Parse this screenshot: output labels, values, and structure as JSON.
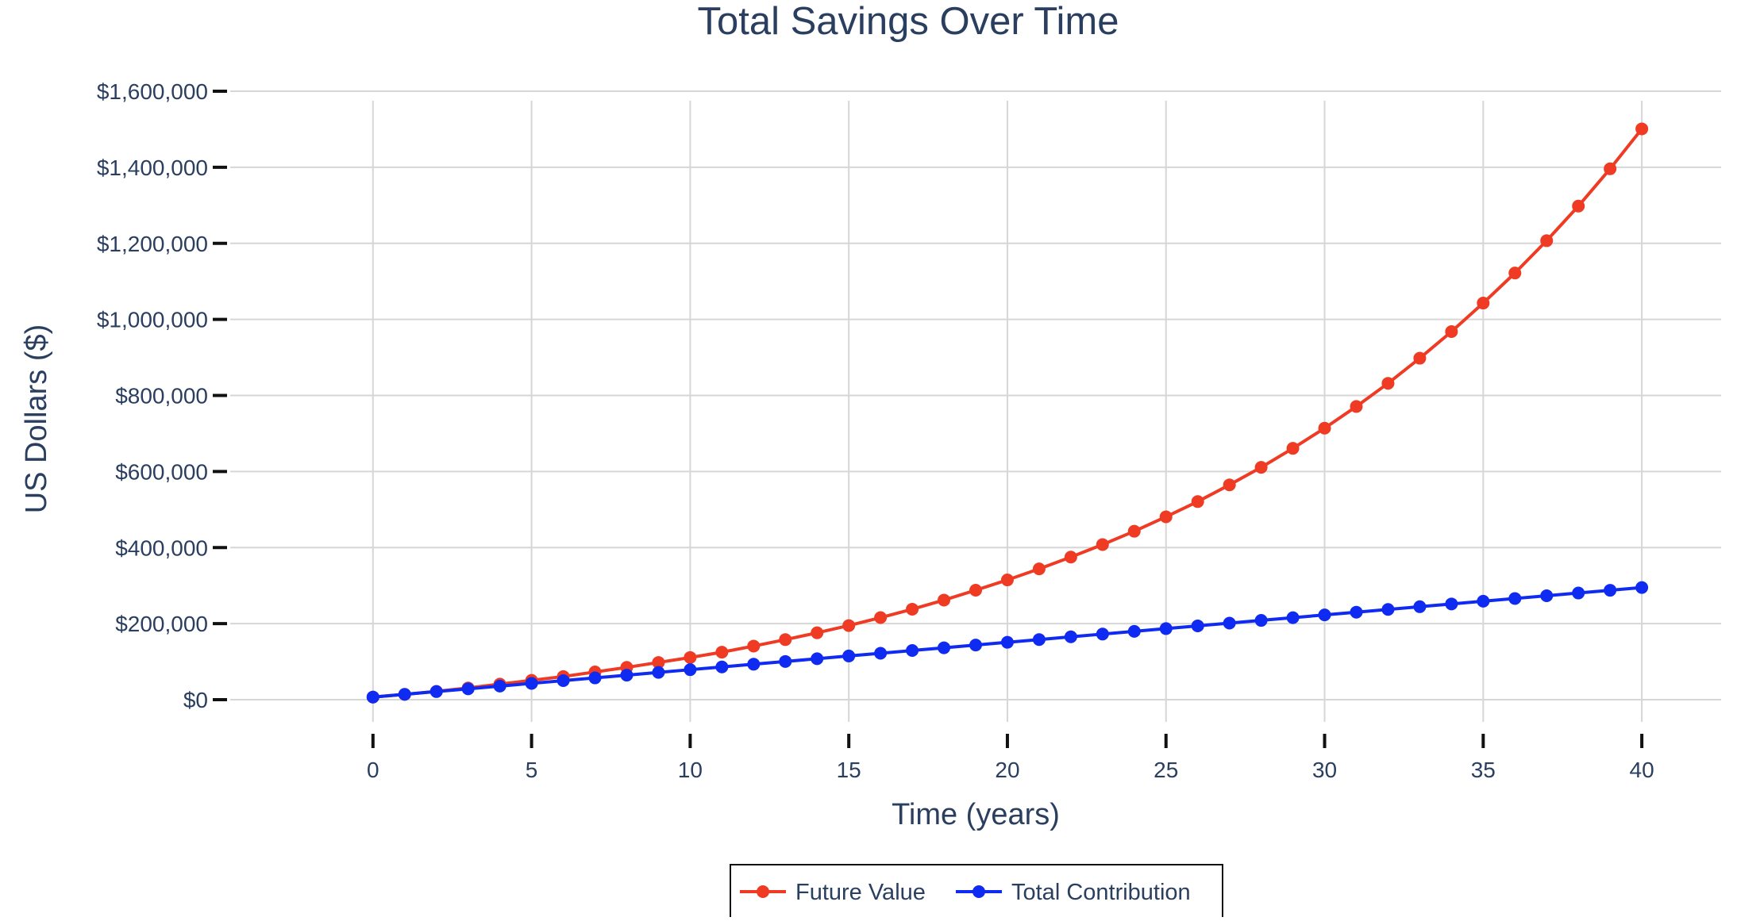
{
  "chart_data": {
    "type": "line",
    "title": "Total Savings Over Time",
    "xlabel": "Time (years)",
    "ylabel": "US Dollars ($)",
    "xlim": [
      -4.5,
      42.5
    ],
    "ylim": [
      -100000,
      1600000
    ],
    "x_ticks": [
      0,
      5,
      10,
      15,
      20,
      25,
      30,
      35,
      40
    ],
    "x_tick_labels": [
      "0",
      "5",
      "10",
      "15",
      "20",
      "25",
      "30",
      "35",
      "40"
    ],
    "y_ticks": [
      0,
      200000,
      400000,
      600000,
      800000,
      1000000,
      1200000,
      1400000,
      1600000
    ],
    "y_tick_labels": [
      "$0",
      "$200,000",
      "$400,000",
      "$600,000",
      "$800,000",
      "$1,000,000",
      "$1,200,000",
      "$1,400,000",
      "$1,600,000"
    ],
    "grid": true,
    "legend_position": "bottom-center",
    "x": [
      0,
      1,
      2,
      3,
      4,
      5,
      6,
      7,
      8,
      9,
      10,
      11,
      12,
      13,
      14,
      15,
      16,
      17,
      18,
      19,
      20,
      21,
      22,
      23,
      24,
      25,
      26,
      27,
      28,
      29,
      30,
      31,
      32,
      33,
      34,
      35,
      36,
      37,
      38,
      39,
      40
    ],
    "series": [
      {
        "name": "Future Value",
        "color": "#ef3b24",
        "values": [
          7000,
          14000,
          22000,
          31000,
          41000,
          51000,
          61000,
          73000,
          85000,
          98000,
          111000,
          125000,
          141000,
          158000,
          176000,
          195000,
          216000,
          238000,
          262000,
          288000,
          315000,
          344000,
          375000,
          408000,
          443000,
          481000,
          521000,
          565000,
          611000,
          661000,
          714000,
          771000,
          832000,
          898000,
          968000,
          1043000,
          1122000,
          1207000,
          1298000,
          1396000,
          1501000
        ]
      },
      {
        "name": "Total Contribution",
        "color": "#0f2bf2",
        "values": [
          7000,
          14200,
          21400,
          28600,
          35800,
          43000,
          50200,
          57400,
          64600,
          71800,
          79000,
          86200,
          93400,
          100600,
          107800,
          115000,
          122200,
          129400,
          136600,
          143800,
          151000,
          158200,
          165400,
          172600,
          179800,
          187000,
          194200,
          201400,
          208600,
          215800,
          223000,
          230200,
          237400,
          244600,
          251800,
          259000,
          266200,
          273400,
          280600,
          287800,
          295000
        ]
      }
    ]
  }
}
